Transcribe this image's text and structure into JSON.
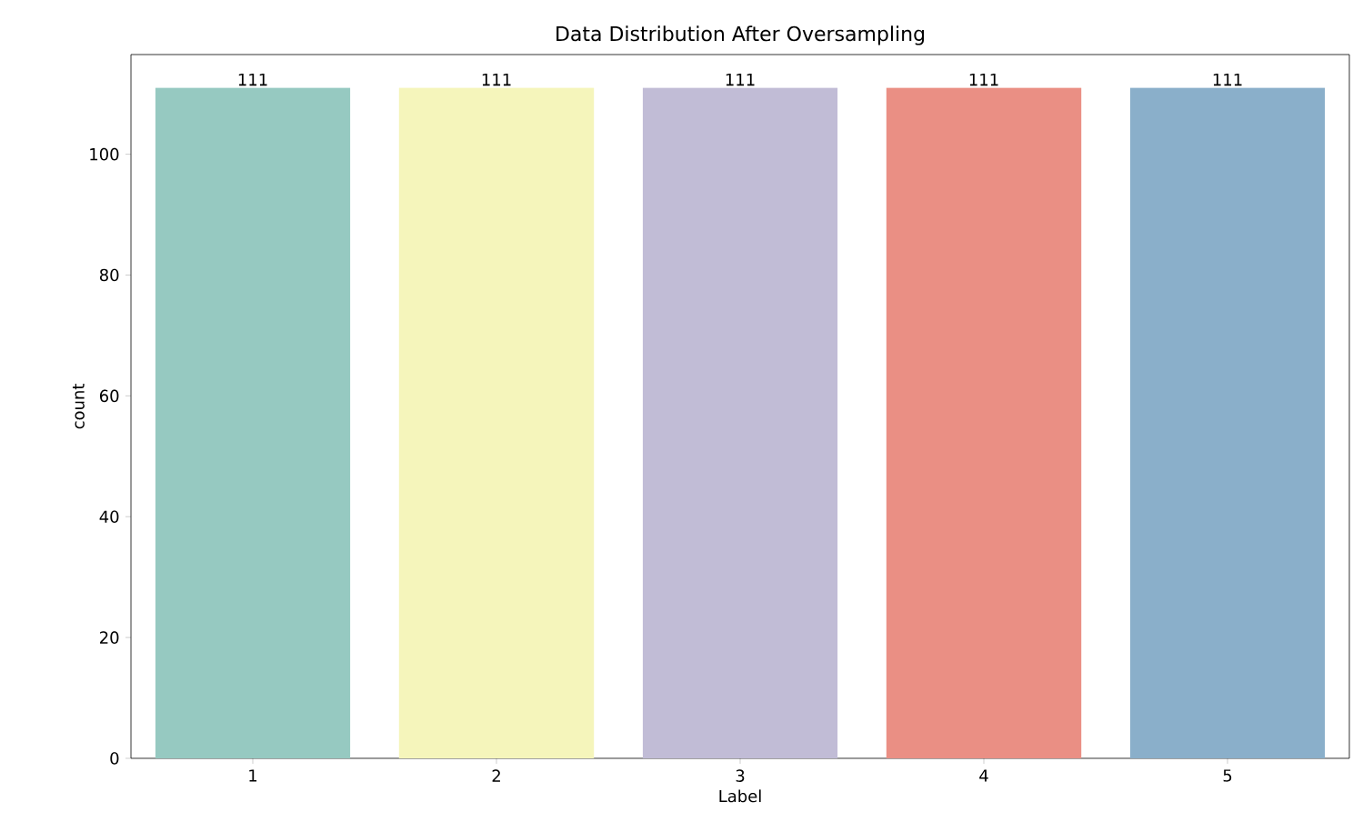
{
  "chart_data": {
    "type": "bar",
    "title": "Data Distribution After Oversampling",
    "xlabel": "Label",
    "ylabel": "count",
    "categories": [
      "1",
      "2",
      "3",
      "4",
      "5"
    ],
    "values": [
      111,
      111,
      111,
      111,
      111
    ],
    "colors": [
      "#96c9c1",
      "#f5f5bb",
      "#c1bcd6",
      "#ea8f84",
      "#8aafca"
    ],
    "ylim": [
      0,
      116.5
    ],
    "yticks": [
      0,
      20,
      40,
      60,
      80,
      100
    ],
    "data_labels": true
  }
}
